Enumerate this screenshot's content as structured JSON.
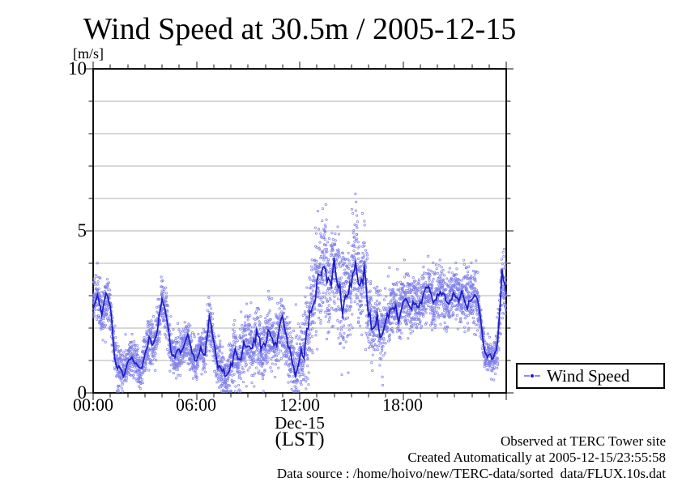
{
  "title": "Wind Speed at 30.5m / 2005-12-15",
  "y_axis": {
    "unit_label": "[m/s]",
    "min": 0,
    "max": 10,
    "tick_labels": [
      "0",
      "5",
      "10"
    ],
    "major_tick_values": [
      0,
      5,
      10
    ],
    "minor_tick_interval": 1
  },
  "x_axis": {
    "tick_labels": [
      "00:00",
      "06:00",
      "12:00",
      "18:00"
    ],
    "major_tick_hours": [
      0,
      6,
      12,
      18,
      24
    ],
    "minor_tick_interval_hours": 1,
    "range_hours": [
      0,
      24
    ],
    "date_label": "Dec-15",
    "timezone_label": "(LST)"
  },
  "legend": {
    "label": "Wind Speed",
    "marker": "blue dashed line with center dot"
  },
  "annotations": [
    "Observed at TERC Tower site",
    "Created Automatically at 2005-12-15/23:55:58",
    "Data source : /home/hoivo/new/TERC-data/sorted  data/FLUX.10s.dat"
  ],
  "colors": {
    "scatter": "#7f7fe9",
    "mean_line": "#1b1bc8",
    "grid": "#b0b0b0",
    "frame": "#111111",
    "background": "#ffffff"
  },
  "chart_data": {
    "type": "scatter",
    "title": "Wind Speed at 30.5m / 2005-12-15",
    "xlabel": "Dec-15 (LST)",
    "ylabel": "[m/s]",
    "xlim_hours": [
      0,
      24
    ],
    "ylim": [
      0,
      10
    ],
    "grid": "horizontal, every 1 m/s, light gray",
    "legend_position": "outside lower right",
    "series": [
      {
        "name": "Wind Speed",
        "style": "dense 10-second scatter samples around a dark-blue running-mean line",
        "x_hours_start": 0,
        "x_hours_step": 0.25,
        "mean_values_mps": [
          2.7,
          3.1,
          2.5,
          2.9,
          2.6,
          1.1,
          0.8,
          0.6,
          0.9,
          1.2,
          0.9,
          0.7,
          1.1,
          1.6,
          1.5,
          2.0,
          2.9,
          2.4,
          1.3,
          1.1,
          1.2,
          1.4,
          1.7,
          1.1,
          0.9,
          1.4,
          1.3,
          2.3,
          1.5,
          0.9,
          0.7,
          0.5,
          0.8,
          1.3,
          1.0,
          1.5,
          1.7,
          1.3,
          1.8,
          1.4,
          1.5,
          1.9,
          1.4,
          1.7,
          2.1,
          1.5,
          1.1,
          0.7,
          1.1,
          1.3,
          2.0,
          2.9,
          3.4,
          3.6,
          4.0,
          3.2,
          3.9,
          3.4,
          2.7,
          3.1,
          3.6,
          4.2,
          3.3,
          3.8,
          2.6,
          1.9,
          2.3,
          1.7,
          2.1,
          2.5,
          2.7,
          2.4,
          2.8,
          3.0,
          2.6,
          2.9,
          2.7,
          3.0,
          3.2,
          2.8,
          3.0,
          3.1,
          2.8,
          3.0,
          3.2,
          2.9,
          3.0,
          2.8,
          3.1,
          2.9,
          2.3,
          1.2,
          1.1,
          1.0,
          1.4,
          3.7,
          2.9
        ],
        "scatter_spread_mps": [
          0.35,
          0.35,
          0.35,
          0.35,
          0.3,
          0.3,
          0.3,
          0.3,
          0.3,
          0.3,
          0.3,
          0.3,
          0.35,
          0.35,
          0.35,
          0.35,
          0.35,
          0.35,
          0.3,
          0.3,
          0.3,
          0.3,
          0.3,
          0.3,
          0.3,
          0.3,
          0.3,
          0.3,
          0.3,
          0.3,
          0.3,
          0.3,
          0.45,
          0.45,
          0.45,
          0.45,
          0.45,
          0.45,
          0.45,
          0.45,
          0.45,
          0.45,
          0.45,
          0.45,
          0.45,
          0.45,
          0.45,
          0.45,
          0.5,
          0.5,
          0.75,
          0.75,
          0.75,
          0.75,
          0.75,
          0.75,
          0.75,
          0.75,
          0.75,
          0.75,
          0.75,
          0.75,
          0.75,
          0.75,
          0.55,
          0.55,
          0.55,
          0.55,
          0.4,
          0.4,
          0.4,
          0.4,
          0.4,
          0.4,
          0.4,
          0.4,
          0.4,
          0.4,
          0.4,
          0.4,
          0.4,
          0.4,
          0.4,
          0.4,
          0.4,
          0.4,
          0.4,
          0.4,
          0.4,
          0.4,
          0.25,
          0.25,
          0.25,
          0.25,
          0.4,
          0.4,
          0.4
        ],
        "observed_max_mps": 6.3,
        "observed_min_mps": 0.1
      }
    ],
    "render": {
      "n_scatter_points": 4600,
      "seed": 1234,
      "dot_radius": 1.2
    }
  }
}
